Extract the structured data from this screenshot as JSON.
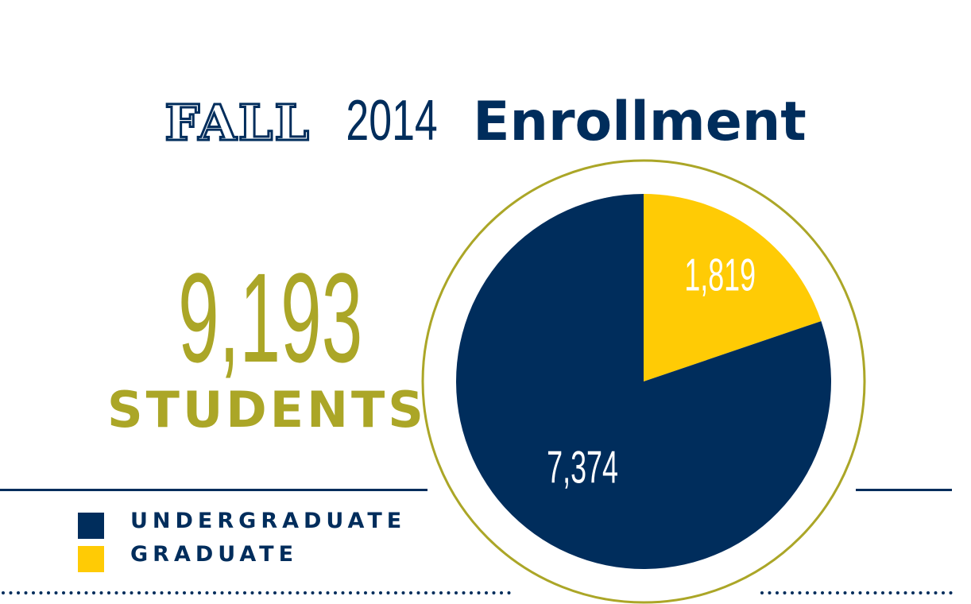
{
  "title": {
    "part1": "FALL",
    "part2": "2014",
    "part3": "Enrollment"
  },
  "summary": {
    "total": "9,193",
    "unit": "STUDENTS"
  },
  "legend": [
    {
      "label": "UNDERGRADUATE",
      "color": "#002d5c"
    },
    {
      "label": "GRADUATE",
      "color": "#ffcb05"
    }
  ],
  "colors": {
    "navy": "#002d5c",
    "gold": "#ffcb05",
    "olive": "#aba627"
  },
  "chart_data": {
    "type": "pie",
    "categories": [
      "UNDERGRADUATE",
      "GRADUATE"
    ],
    "values": [
      7374,
      1819
    ],
    "labels": [
      "7,374",
      "1,819"
    ],
    "colors": [
      "#002d5c",
      "#ffcb05"
    ],
    "start": "12 o'clock, graduate slice first, clockwise"
  }
}
